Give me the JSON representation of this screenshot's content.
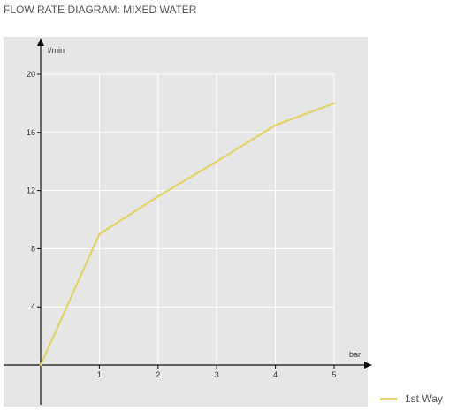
{
  "title": "FLOW RATE DIAGRAM: MIXED WATER",
  "colors": {
    "plot_background": "#e6e6e6",
    "grid": "#ffffff",
    "axis": "#111111",
    "series": "#e3d46b"
  },
  "chart_data": {
    "type": "line",
    "xlabel": "bar",
    "ylabel": "l/min",
    "xlim": [
      0,
      5
    ],
    "ylim": [
      0,
      20
    ],
    "x_ticks": [
      1,
      2,
      3,
      4,
      5
    ],
    "y_ticks": [
      4,
      8,
      12,
      16,
      20
    ],
    "grid": true,
    "legend_position": "bottom-right",
    "series": [
      {
        "name": "1st Way",
        "x": [
          0,
          1,
          2,
          3,
          4,
          5
        ],
        "y": [
          0,
          9.0,
          11.6,
          14.0,
          16.5,
          18.0
        ]
      }
    ]
  }
}
